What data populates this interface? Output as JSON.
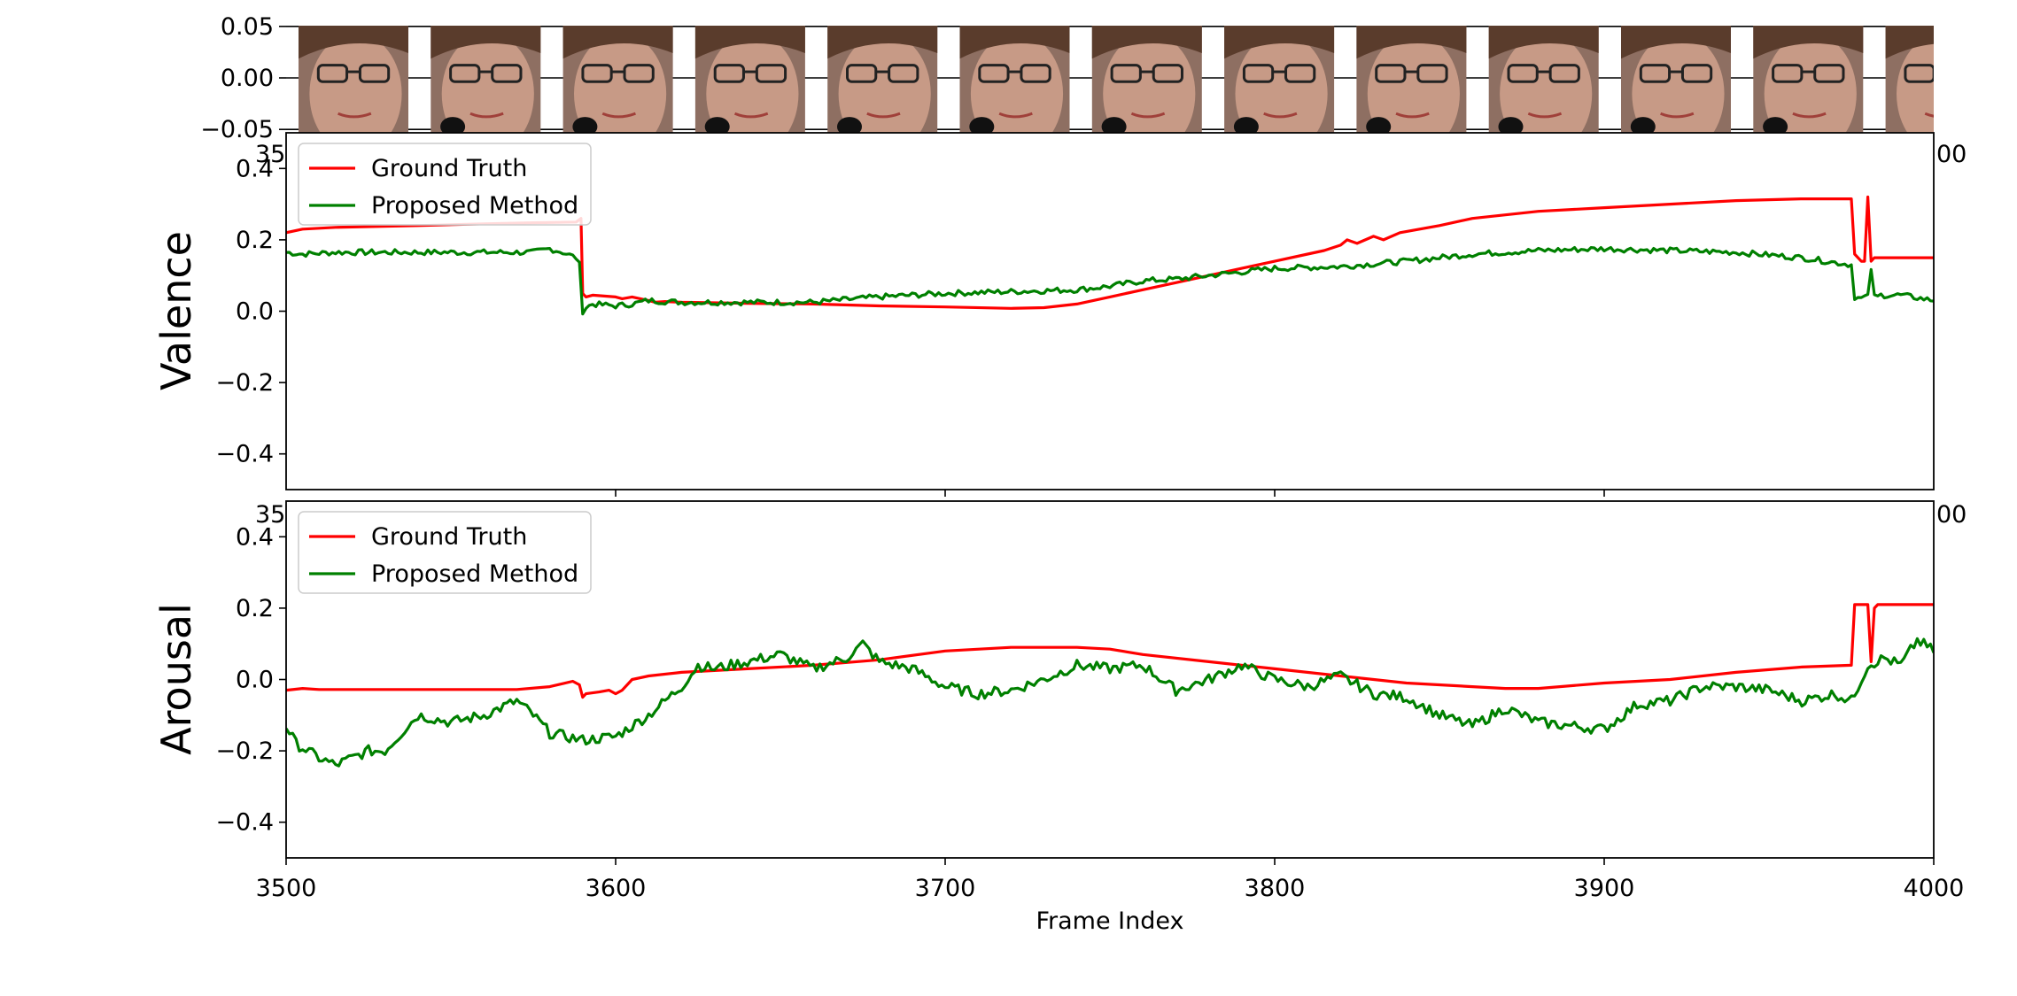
{
  "colors": {
    "ground_truth": "#ff0000",
    "proposed": "#008000",
    "face_skin": "#c79a86",
    "hair": "#5a3c2c"
  },
  "chart_data": [
    {
      "type": "image-strip",
      "ylim": [
        -0.055,
        0.055
      ],
      "yticks": [
        0.05,
        0.0,
        -0.05
      ],
      "ytick_labels": [
        "0.05",
        "0.00",
        "−0.05"
      ],
      "xtick_labels_partial": [
        "35",
        "00"
      ],
      "thumbnail_count": 13
    },
    {
      "type": "line",
      "ylabel": "Valence",
      "xlim": [
        3500,
        4000
      ],
      "ylim": [
        -0.5,
        0.5
      ],
      "yticks": [
        -0.4,
        -0.2,
        0.0,
        0.2,
        0.4
      ],
      "ytick_labels": [
        "−0.4",
        "−0.2",
        "0.0",
        "0.2",
        "0.4"
      ],
      "xtick_labels_partial": [
        "35",
        "00"
      ],
      "legend": "top-left",
      "series": [
        {
          "name": "Ground Truth",
          "color": "#ff0000",
          "x": [
            3500,
            3505,
            3515,
            3540,
            3560,
            3575,
            3588,
            3589.5,
            3590,
            3591,
            3593,
            3600,
            3602,
            3605,
            3610,
            3612,
            3615,
            3620,
            3640,
            3660,
            3680,
            3700,
            3720,
            3730,
            3740,
            3750,
            3760,
            3770,
            3780,
            3790,
            3800,
            3810,
            3815,
            3820,
            3822,
            3825,
            3830,
            3833,
            3838,
            3850,
            3860,
            3880,
            3900,
            3920,
            3940,
            3960,
            3975,
            3976,
            3978,
            3979,
            3980,
            3981,
            3982,
            3983,
            3984,
            3990,
            4000
          ],
          "y": [
            0.22,
            0.23,
            0.235,
            0.24,
            0.245,
            0.248,
            0.25,
            0.26,
            0.05,
            0.04,
            0.045,
            0.04,
            0.035,
            0.04,
            0.03,
            0.025,
            0.027,
            0.025,
            0.022,
            0.02,
            0.015,
            0.012,
            0.008,
            0.01,
            0.02,
            0.04,
            0.06,
            0.08,
            0.1,
            0.12,
            0.14,
            0.16,
            0.17,
            0.185,
            0.2,
            0.19,
            0.21,
            0.2,
            0.22,
            0.24,
            0.26,
            0.28,
            0.29,
            0.3,
            0.31,
            0.315,
            0.315,
            0.16,
            0.14,
            0.14,
            0.32,
            0.14,
            0.15,
            0.15,
            0.15,
            0.15,
            0.15
          ]
        },
        {
          "name": "Proposed Method",
          "color": "#008000",
          "x": [
            3500,
            3505,
            3515,
            3540,
            3560,
            3575,
            3580,
            3584,
            3588,
            3589.5,
            3590,
            3591,
            3593,
            3600,
            3605,
            3610,
            3620,
            3640,
            3660,
            3680,
            3700,
            3720,
            3740,
            3750,
            3760,
            3770,
            3780,
            3790,
            3800,
            3820,
            3840,
            3860,
            3880,
            3900,
            3920,
            3940,
            3960,
            3975,
            3976,
            3978,
            3979,
            3980,
            3981,
            3982,
            3983,
            3984,
            3990,
            4000
          ],
          "y": [
            0.165,
            0.16,
            0.165,
            0.165,
            0.165,
            0.165,
            0.175,
            0.165,
            0.15,
            0.12,
            0.0,
            0.01,
            0.02,
            0.015,
            0.02,
            0.03,
            0.025,
            0.025,
            0.025,
            0.04,
            0.05,
            0.055,
            0.06,
            0.07,
            0.085,
            0.09,
            0.1,
            0.11,
            0.12,
            0.125,
            0.14,
            0.16,
            0.17,
            0.175,
            0.17,
            0.165,
            0.15,
            0.13,
            0.04,
            0.035,
            0.04,
            0.04,
            0.12,
            0.04,
            0.04,
            0.045,
            0.045,
            0.03
          ],
          "jitter_amplitude": 0.008
        }
      ]
    },
    {
      "type": "line",
      "ylabel": "Arousal",
      "xlabel": "Frame Index",
      "xlim": [
        3500,
        4000
      ],
      "ylim": [
        -0.5,
        0.5
      ],
      "xticks": [
        3500,
        3600,
        3700,
        3800,
        3900,
        4000
      ],
      "xtick_labels": [
        "3500",
        "3600",
        "3700",
        "3800",
        "3900",
        "4000"
      ],
      "yticks": [
        -0.4,
        -0.2,
        0.0,
        0.2,
        0.4
      ],
      "ytick_labels": [
        "−0.4",
        "−0.2",
        "0.0",
        "0.2",
        "0.4"
      ],
      "legend": "top-left",
      "series": [
        {
          "name": "Ground Truth",
          "color": "#ff0000",
          "x": [
            3500,
            3505,
            3510,
            3540,
            3570,
            3580,
            3587,
            3589,
            3590,
            3591,
            3595,
            3598,
            3600,
            3602,
            3605,
            3610,
            3620,
            3640,
            3660,
            3680,
            3700,
            3720,
            3740,
            3750,
            3760,
            3780,
            3800,
            3820,
            3840,
            3860,
            3870,
            3880,
            3900,
            3920,
            3940,
            3960,
            3975,
            3976,
            3978,
            3980,
            3981,
            3982,
            3983,
            3990,
            4000
          ],
          "y": [
            -0.03,
            -0.025,
            -0.028,
            -0.028,
            -0.028,
            -0.02,
            -0.005,
            -0.015,
            -0.05,
            -0.04,
            -0.035,
            -0.03,
            -0.04,
            -0.03,
            0.0,
            0.01,
            0.02,
            0.03,
            0.04,
            0.055,
            0.08,
            0.09,
            0.09,
            0.085,
            0.07,
            0.05,
            0.03,
            0.01,
            -0.01,
            -0.02,
            -0.025,
            -0.025,
            -0.01,
            0.0,
            0.02,
            0.035,
            0.04,
            0.21,
            0.21,
            0.21,
            0.05,
            0.2,
            0.21,
            0.21,
            0.21
          ]
        },
        {
          "name": "Proposed Method",
          "color": "#008000",
          "x": [
            3500,
            3503,
            3510,
            3515,
            3525,
            3530,
            3540,
            3550,
            3560,
            3570,
            3575,
            3580,
            3590,
            3600,
            3610,
            3620,
            3625,
            3630,
            3640,
            3650,
            3660,
            3670,
            3675,
            3680,
            3690,
            3700,
            3710,
            3720,
            3730,
            3740,
            3750,
            3760,
            3770,
            3780,
            3790,
            3800,
            3810,
            3820,
            3830,
            3840,
            3850,
            3860,
            3870,
            3880,
            3890,
            3900,
            3910,
            3920,
            3930,
            3940,
            3950,
            3960,
            3970,
            3975,
            3980,
            3985,
            3990,
            3995,
            4000
          ],
          "y": [
            -0.13,
            -0.18,
            -0.22,
            -0.24,
            -0.2,
            -0.2,
            -0.1,
            -0.12,
            -0.1,
            -0.06,
            -0.1,
            -0.15,
            -0.17,
            -0.16,
            -0.1,
            -0.02,
            0.04,
            0.03,
            0.05,
            0.07,
            0.03,
            0.06,
            0.1,
            0.05,
            0.03,
            -0.02,
            -0.04,
            -0.03,
            0.0,
            0.04,
            0.03,
            0.04,
            -0.03,
            0.0,
            0.04,
            0.0,
            -0.02,
            0.01,
            -0.04,
            -0.05,
            -0.1,
            -0.13,
            -0.08,
            -0.12,
            -0.13,
            -0.14,
            -0.07,
            -0.06,
            -0.02,
            -0.02,
            -0.03,
            -0.06,
            -0.04,
            -0.06,
            0.04,
            0.06,
            0.04,
            0.11,
            0.08
          ],
          "jitter_amplitude": 0.015
        }
      ]
    }
  ]
}
